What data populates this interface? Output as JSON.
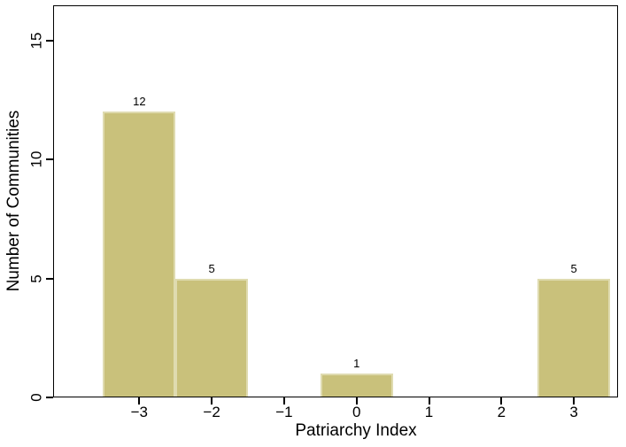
{
  "chart_data": {
    "type": "bar",
    "subtype": "histogram",
    "title": "",
    "xlabel": "Patriarchy Index",
    "ylabel": "Number of Communities",
    "categories": [
      -3,
      -2,
      0,
      3
    ],
    "values": [
      12,
      5,
      1,
      5
    ],
    "bars": [
      {
        "center": -3,
        "from": -3.5,
        "to": -2.5,
        "value": 12,
        "label": "12"
      },
      {
        "center": -2,
        "from": -2.5,
        "to": -1.5,
        "value": 5,
        "label": "5"
      },
      {
        "center": 0,
        "from": -0.5,
        "to": 0.5,
        "value": 1,
        "label": "1"
      },
      {
        "center": 3,
        "from": 2.5,
        "to": 3.5,
        "value": 5,
        "label": "5"
      }
    ],
    "x_ticks": [
      {
        "value": -3,
        "label": "−3"
      },
      {
        "value": -2,
        "label": "−2"
      },
      {
        "value": -1,
        "label": "−1"
      },
      {
        "value": 0,
        "label": "0"
      },
      {
        "value": 1,
        "label": "1"
      },
      {
        "value": 2,
        "label": "2"
      },
      {
        "value": 3,
        "label": "3"
      }
    ],
    "y_ticks": [
      {
        "value": 0,
        "label": "0"
      },
      {
        "value": 5,
        "label": "5"
      },
      {
        "value": 10,
        "label": "10"
      },
      {
        "value": 15,
        "label": "15"
      }
    ],
    "xlim": [
      -4.19,
      3.61
    ],
    "ylim": [
      0,
      16.47
    ],
    "grid": false,
    "legend": false,
    "bar_fill_color": "#c9c17b",
    "bar_border_color": "#dfdbb0",
    "axis_color": "#000000",
    "text_color": "#000000",
    "background_color": "#ffffff"
  }
}
